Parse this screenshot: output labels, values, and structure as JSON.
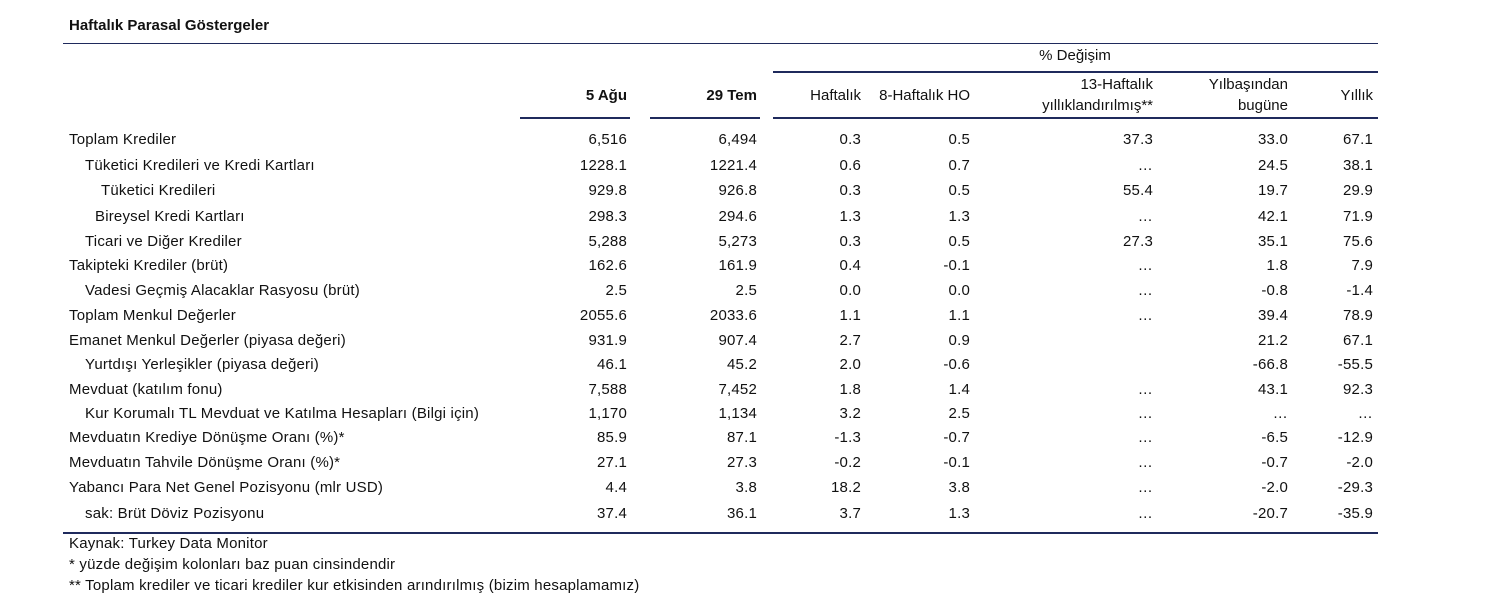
{
  "title": "Haftalık Parasal Göstergeler",
  "header": {
    "group": "% Değişim",
    "col1": "5 Ağu",
    "col2": "29 Tem",
    "col3": "Haftalık",
    "col4": "8-Haftalık HO",
    "col5_line1": "13-Haftalık",
    "col5_line2": "yıllıklandırılmış**",
    "col6_line1": "Yılbaşından",
    "col6_line2": "bugüne",
    "col7": "Yıllık"
  },
  "rows": [
    {
      "label": "Toplam Krediler",
      "indent": 0,
      "v": [
        "6,516",
        "6,494",
        "0.3",
        "0.5",
        "37.3",
        "33.0",
        "67.1"
      ]
    },
    {
      "label": "Tüketici Kredileri ve Kredi Kartları",
      "indent": 1,
      "v": [
        "1228.1",
        "1221.4",
        "0.6",
        "0.7",
        "…",
        "24.5",
        "38.1"
      ]
    },
    {
      "label": "Tüketici Kredileri",
      "indent": 2,
      "v": [
        "929.8",
        "926.8",
        "0.3",
        "0.5",
        "55.4",
        "19.7",
        "29.9"
      ]
    },
    {
      "label": "Bireysel Kredi Kartları",
      "indent": 3,
      "v": [
        "298.3",
        "294.6",
        "1.3",
        "1.3",
        "…",
        "42.1",
        "71.9"
      ]
    },
    {
      "label": "Ticari ve Diğer Krediler",
      "indent": 1,
      "v": [
        "5,288",
        "5,273",
        "0.3",
        "0.5",
        "27.3",
        "35.1",
        "75.6"
      ]
    },
    {
      "label": "Takipteki Krediler (brüt)",
      "indent": 0,
      "v": [
        "162.6",
        "161.9",
        "0.4",
        "-0.1",
        "…",
        "1.8",
        "7.9"
      ]
    },
    {
      "label": "Vadesi Geçmiş Alacaklar Rasyosu (brüt)",
      "indent": 1,
      "v": [
        "2.5",
        "2.5",
        "0.0",
        "0.0",
        "…",
        "-0.8",
        "-1.4"
      ]
    },
    {
      "label": "Toplam Menkul Değerler",
      "indent": 0,
      "v": [
        "2055.6",
        "2033.6",
        "1.1",
        "1.1",
        "…",
        "39.4",
        "78.9"
      ]
    },
    {
      "label": "Emanet Menkul Değerler (piyasa değeri)",
      "indent": 0,
      "v": [
        "931.9",
        "907.4",
        "2.7",
        "0.9",
        "",
        "21.2",
        "67.1"
      ]
    },
    {
      "label": "Yurtdışı Yerleşikler (piyasa değeri)",
      "indent": 1,
      "v": [
        "46.1",
        "45.2",
        "2.0",
        "-0.6",
        "",
        "-66.8",
        "-55.5"
      ]
    },
    {
      "label": "Mevduat (katılım fonu)",
      "indent": 0,
      "v": [
        "7,588",
        "7,452",
        "1.8",
        "1.4",
        "…",
        "43.1",
        "92.3"
      ]
    },
    {
      "label": "Kur Korumalı TL Mevduat ve Katılma Hesapları (Bilgi için)",
      "indent": 1,
      "v": [
        "1,170",
        "1,134",
        "3.2",
        "2.5",
        "…",
        "…",
        "…"
      ]
    },
    {
      "label": "Mevduatın Krediye Dönüşme Oranı (%)*",
      "indent": 0,
      "v": [
        "85.9",
        "87.1",
        "-1.3",
        "-0.7",
        "…",
        "-6.5",
        "-12.9"
      ]
    },
    {
      "label": "Mevduatın Tahvile Dönüşme Oranı (%)*",
      "indent": 0,
      "v": [
        "27.1",
        "27.3",
        "-0.2",
        "-0.1",
        "…",
        "-0.7",
        "-2.0"
      ]
    },
    {
      "label": "Yabancı Para Net Genel Pozisyonu (mlr USD)",
      "indent": 0,
      "v": [
        "4.4",
        "3.8",
        "18.2",
        "3.8",
        "…",
        "-2.0",
        "-29.3"
      ]
    },
    {
      "label": "sak: Brüt Döviz Pozisyonu",
      "indent": 1,
      "v": [
        "37.4",
        "36.1",
        "3.7",
        "1.3",
        "…",
        "-20.7",
        "-35.9"
      ]
    }
  ],
  "footer": {
    "source": "Kaynak: Turkey Data Monitor",
    "note1": "* yüzde değişim kolonları baz puan cinsindendir",
    "note2": "** Toplam krediler ve ticari krediler kur etkisinden arındırılmış (bizim hesaplamamız)"
  }
}
